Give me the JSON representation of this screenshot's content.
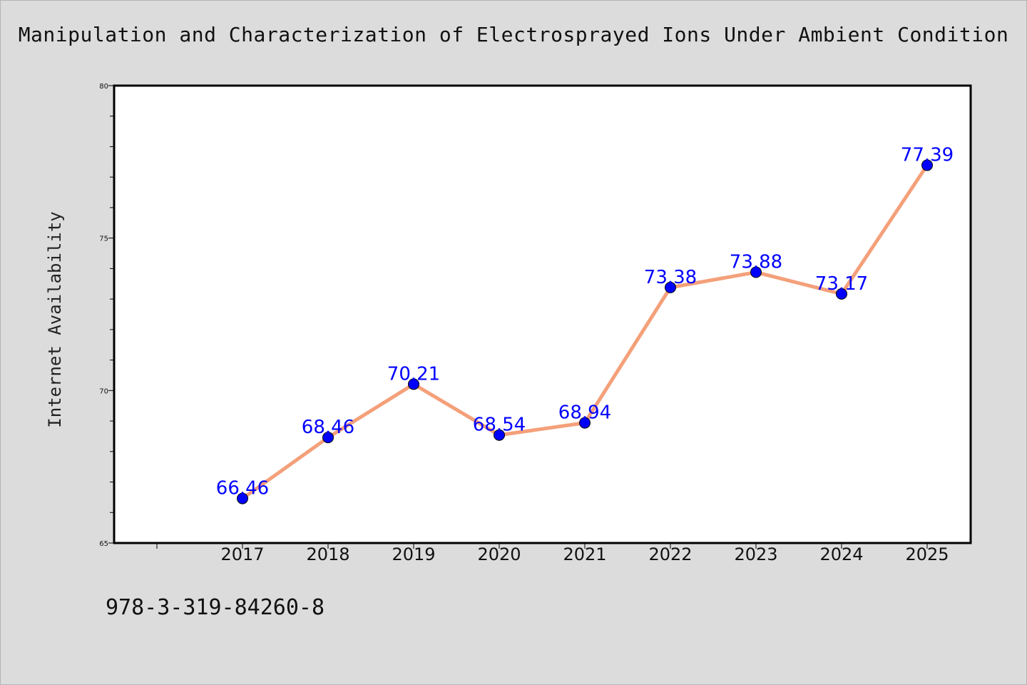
{
  "title": "Manipulation and Characterization of Electrosprayed Ions Under Ambient Condition",
  "isbn": "978-3-319-84260-8",
  "colors": {
    "background": "#dcdcdc",
    "plot_bg": "#ffffff",
    "line": "#f4a07a",
    "marker": "#0000ff",
    "label": "#0000ff"
  },
  "chart_data": {
    "type": "line",
    "title": "Manipulation and Characterization of Electrosprayed Ions Under Ambient Condition",
    "xlabel": "",
    "ylabel": "Internet Availability",
    "categories": [
      "2017",
      "2018",
      "2019",
      "2020",
      "2021",
      "2022",
      "2023",
      "2024",
      "2025"
    ],
    "series": [
      {
        "values": [
          66.46,
          68.46,
          70.21,
          68.54,
          68.94,
          73.38,
          73.88,
          73.17,
          77.39
        ],
        "data_labels": [
          "66.46",
          "68.46",
          "70.21",
          "68.54",
          "68.94",
          "73.38",
          "73.88",
          "73.17",
          "77.39"
        ]
      }
    ],
    "ylim": [
      65,
      80
    ],
    "yticks": [
      "65",
      "70",
      "75",
      "80"
    ],
    "grid": false,
    "legend": "none"
  }
}
